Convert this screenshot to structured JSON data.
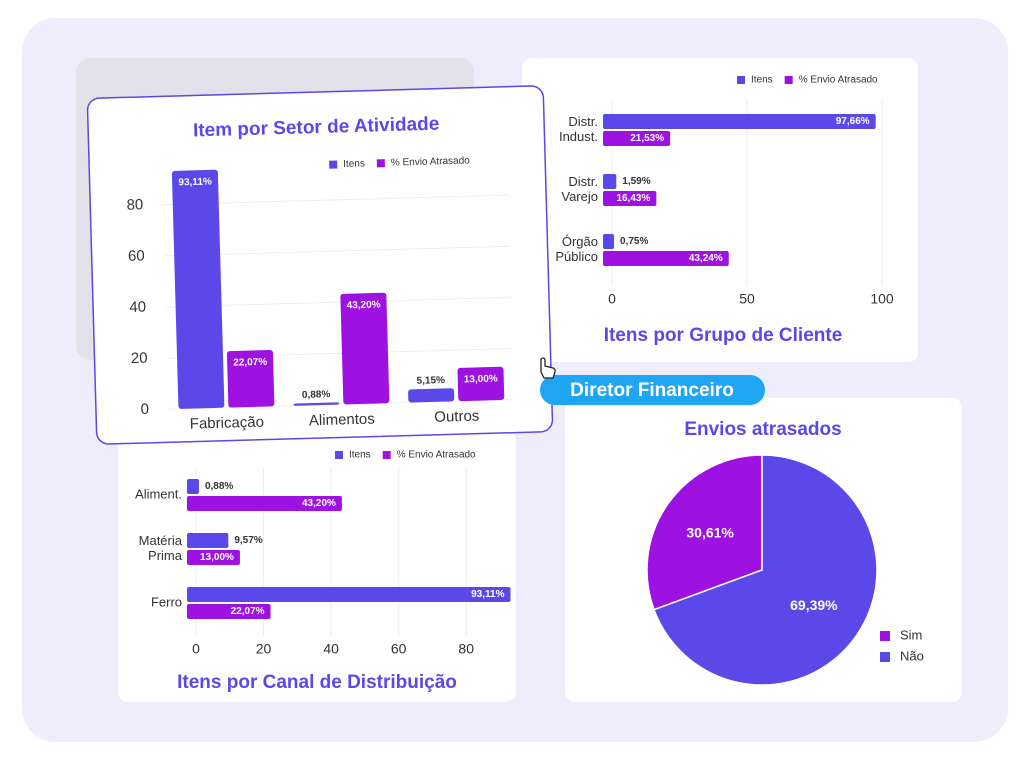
{
  "badge": "Diretor Financeiro",
  "chart_data": [
    {
      "type": "bar",
      "title": "Item por Setor de Atividade",
      "categories": [
        "Fabricação",
        "Alimentos",
        "Outros"
      ],
      "series": [
        {
          "name": "Itens",
          "color": "#5a48e8",
          "values": [
            93.11,
            0.88,
            5.15
          ],
          "value_labels": [
            "93,11%",
            "0,88%",
            "5,15%"
          ]
        },
        {
          "name": "% Envio Atrasado",
          "color": "#9d12e0",
          "values": [
            22.07,
            43.2,
            13.0
          ],
          "value_labels": [
            "22,07%",
            "43,20%",
            "13,00%"
          ]
        }
      ],
      "ylim": [
        0,
        95
      ],
      "yticks": [
        0,
        20,
        40,
        60,
        80
      ],
      "grid": true
    },
    {
      "type": "hbar",
      "title": "Itens por Grupo de Cliente",
      "categories": [
        [
          "Distr.",
          "Indust."
        ],
        [
          "Distr.",
          "Varejo"
        ],
        [
          "Órgão",
          "Público"
        ]
      ],
      "series": [
        {
          "name": "Itens",
          "color": "#5a48e8",
          "values": [
            97.66,
            1.59,
            0.75
          ],
          "value_labels": [
            "97,66%",
            "1,59%",
            "0,75%"
          ]
        },
        {
          "name": "% Envio Atrasado",
          "color": "#9d12e0",
          "values": [
            21.53,
            16.43,
            43.24
          ],
          "value_labels": [
            "21,53%",
            "16,43%",
            "43,24%"
          ]
        }
      ],
      "xlim": [
        0,
        100
      ],
      "xticks": [
        0,
        50,
        100
      ],
      "grid": true
    },
    {
      "type": "hbar",
      "title": "Itens por Canal de Distribuição",
      "categories": [
        [
          "Aliment."
        ],
        [
          "Matéria",
          "Prima"
        ],
        [
          "Ferro"
        ]
      ],
      "series": [
        {
          "name": "Itens",
          "color": "#5a48e8",
          "values": [
            0.88,
            9.57,
            93.11
          ],
          "value_labels": [
            "0,88%",
            "9,57%",
            "93,11%"
          ]
        },
        {
          "name": "% Envio Atrasado",
          "color": "#9d12e0",
          "values": [
            43.2,
            13.0,
            22.07
          ],
          "value_labels": [
            "43,20%",
            "13,00%",
            "22,07%"
          ]
        }
      ],
      "xlim": [
        0,
        90
      ],
      "xticks": [
        0,
        20,
        40,
        60,
        80
      ],
      "grid": true
    },
    {
      "type": "pie",
      "title": "Envios atrasados",
      "categories": [
        "Sim",
        "Não"
      ],
      "values": [
        30.61,
        69.39
      ],
      "value_labels": [
        "30,61%",
        "69,39%"
      ],
      "colors": [
        "#9d12e0",
        "#5a48e8"
      ],
      "legend": "lower right"
    }
  ]
}
